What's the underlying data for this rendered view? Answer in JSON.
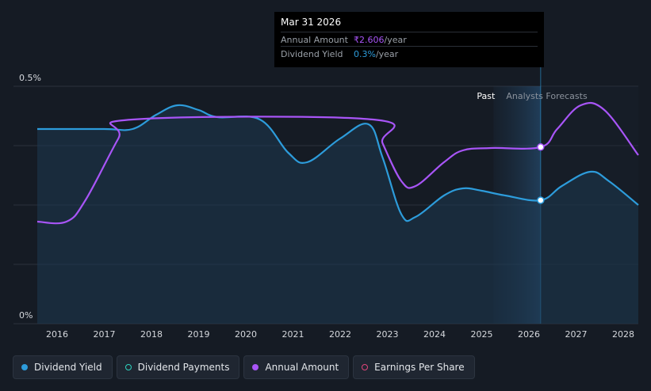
{
  "chart_data": {
    "type": "line",
    "x_domain": [
      2015.58,
      2028.32
    ],
    "ylim": [
      0,
      0.5
    ],
    "y_ticks": [
      {
        "value": 0.5,
        "label": "0.5%"
      },
      {
        "value": 0,
        "label": "0%"
      }
    ],
    "x_ticks": [
      "2016",
      "2017",
      "2018",
      "2019",
      "2020",
      "2021",
      "2022",
      "2023",
      "2024",
      "2025",
      "2026",
      "2027",
      "2028"
    ],
    "past_label": "Past",
    "forecast_label": "Analysts Forecasts",
    "forecast_start": 2026.25,
    "series": [
      {
        "name": "Dividend Yield",
        "color": "#2d9cdb",
        "unit": "%",
        "points": [
          [
            2015.58,
            0.41
          ],
          [
            2017.0,
            0.41
          ],
          [
            2017.6,
            0.41
          ],
          [
            2018.1,
            0.44
          ],
          [
            2018.55,
            0.46
          ],
          [
            2019.0,
            0.45
          ],
          [
            2019.4,
            0.435
          ],
          [
            2020.3,
            0.43
          ],
          [
            2020.9,
            0.36
          ],
          [
            2021.3,
            0.34
          ],
          [
            2022.0,
            0.39
          ],
          [
            2022.6,
            0.42
          ],
          [
            2022.9,
            0.35
          ],
          [
            2023.3,
            0.23
          ],
          [
            2023.6,
            0.225
          ],
          [
            2024.2,
            0.27
          ],
          [
            2024.6,
            0.285
          ],
          [
            2025.0,
            0.28
          ],
          [
            2025.5,
            0.27
          ],
          [
            2026.25,
            0.26
          ],
          [
            2026.7,
            0.29
          ],
          [
            2027.3,
            0.32
          ],
          [
            2027.7,
            0.3
          ],
          [
            2028.32,
            0.25
          ]
        ]
      },
      {
        "name": "Annual Amount",
        "color": "#a855f7",
        "unit": "₹/year",
        "points": [
          [
            2015.58,
            0.215
          ],
          [
            2016.2,
            0.215
          ],
          [
            2016.6,
            0.26
          ],
          [
            2017.3,
            0.39
          ],
          [
            2017.6,
            0.43
          ],
          [
            2022.7,
            0.43
          ],
          [
            2022.9,
            0.38
          ],
          [
            2023.3,
            0.3
          ],
          [
            2023.6,
            0.29
          ],
          [
            2024.2,
            0.34
          ],
          [
            2024.6,
            0.365
          ],
          [
            2025.2,
            0.37
          ],
          [
            2026.25,
            0.372
          ],
          [
            2026.6,
            0.41
          ],
          [
            2027.1,
            0.46
          ],
          [
            2027.6,
            0.45
          ],
          [
            2028.32,
            0.355
          ]
        ]
      }
    ],
    "highlight": {
      "x": 2026.25,
      "date_label": "Mar 31 2026",
      "annual_amount": "₹2.606",
      "dividend_yield": "0.3%",
      "yield_value": 0.26,
      "amount_value": 0.372
    }
  },
  "tooltip": {
    "date": "Mar 31 2026",
    "rows": [
      {
        "label": "Annual Amount",
        "value": "₹2.606",
        "unit": "/year"
      },
      {
        "label": "Dividend Yield",
        "value": "0.3%",
        "unit": "/year"
      }
    ]
  },
  "legend": [
    {
      "label": "Dividend Yield",
      "color": "#2d9cdb",
      "style": "filled"
    },
    {
      "label": "Dividend Payments",
      "color": "#2dd4bf",
      "style": "hollow"
    },
    {
      "label": "Annual Amount",
      "color": "#a855f7",
      "style": "filled"
    },
    {
      "label": "Earnings Per Share",
      "color": "#e0457b",
      "style": "hollow"
    }
  ]
}
